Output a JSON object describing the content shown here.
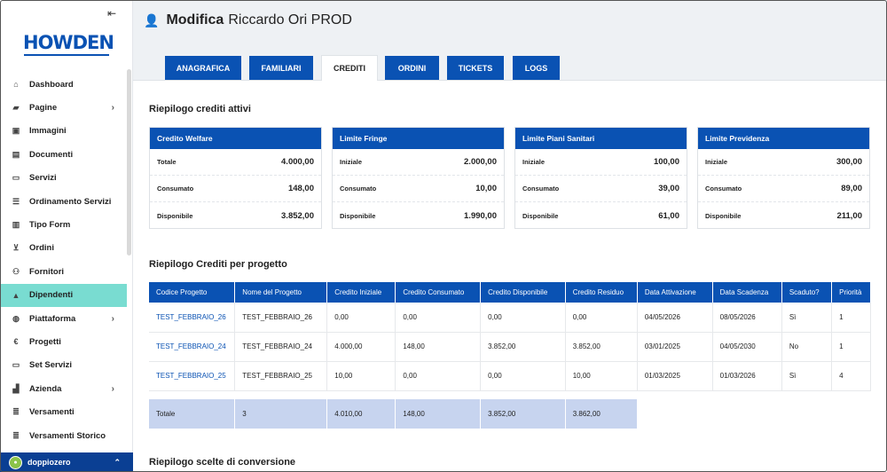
{
  "sidebar": {
    "collapse_glyph": "⇤",
    "logo": "HOWDEN",
    "items": [
      {
        "label": "Dashboard",
        "icon": "home-icon"
      },
      {
        "label": "Pagine",
        "icon": "folder-icon",
        "has_children": true
      },
      {
        "label": "Immagini",
        "icon": "image-icon"
      },
      {
        "label": "Documenti",
        "icon": "document-icon"
      },
      {
        "label": "Servizi",
        "icon": "card-icon"
      },
      {
        "label": "Ordinamento Servizi",
        "icon": "list-ordered-icon"
      },
      {
        "label": "Tipo Form",
        "icon": "form-icon"
      },
      {
        "label": "Ordini",
        "icon": "cart-icon"
      },
      {
        "label": "Fornitori",
        "icon": "users-icon"
      },
      {
        "label": "Dipendenti",
        "icon": "user-icon",
        "active": true
      },
      {
        "label": "Piattaforma",
        "icon": "globe-icon",
        "has_children": true
      },
      {
        "label": "Progetti",
        "icon": "euro-icon"
      },
      {
        "label": "Set Servizi",
        "icon": "card-icon"
      },
      {
        "label": "Azienda",
        "icon": "chart-icon",
        "has_children": true
      },
      {
        "label": "Versamenti",
        "icon": "list-icon"
      },
      {
        "label": "Versamenti Storico",
        "icon": "list-icon"
      }
    ],
    "user": {
      "name": "doppiozero"
    }
  },
  "header": {
    "action": "Modifica",
    "name": "Riccardo Ori PROD"
  },
  "tabs": [
    {
      "label": "ANAGRAFICA"
    },
    {
      "label": "FAMILIARI"
    },
    {
      "label": "CREDITI",
      "active": true
    },
    {
      "label": "ORDINI"
    },
    {
      "label": "TICKETS"
    },
    {
      "label": "LOGS"
    }
  ],
  "summary": {
    "title": "Riepilogo crediti attivi",
    "cards": [
      {
        "title": "Credito Welfare",
        "rows": [
          {
            "label": "Totale",
            "value": "4.000,00"
          },
          {
            "label": "Consumato",
            "value": "148,00"
          },
          {
            "label": "Disponibile",
            "value": "3.852,00"
          }
        ]
      },
      {
        "title": "Limite Fringe",
        "rows": [
          {
            "label": "Iniziale",
            "value": "2.000,00"
          },
          {
            "label": "Consumato",
            "value": "10,00"
          },
          {
            "label": "Disponibile",
            "value": "1.990,00"
          }
        ]
      },
      {
        "title": "Limite Piani Sanitari",
        "rows": [
          {
            "label": "Iniziale",
            "value": "100,00"
          },
          {
            "label": "Consumato",
            "value": "39,00"
          },
          {
            "label": "Disponibile",
            "value": "61,00"
          }
        ]
      },
      {
        "title": "Limite Previdenza",
        "rows": [
          {
            "label": "Iniziale",
            "value": "300,00"
          },
          {
            "label": "Consumato",
            "value": "89,00"
          },
          {
            "label": "Disponibile",
            "value": "211,00"
          }
        ]
      }
    ]
  },
  "projects": {
    "title": "Riepilogo Crediti per progetto",
    "columns": [
      "Codice Progetto",
      "Nome del Progetto",
      "Credito Iniziale",
      "Credito Consumato",
      "Credito Disponibile",
      "Credito Residuo",
      "Data Attivazione",
      "Data Scadenza",
      "Scaduto?",
      "Priorità"
    ],
    "rows": [
      [
        "TEST_FEBBRAIO_26",
        "TEST_FEBBRAIO_26",
        "0,00",
        "0,00",
        "0,00",
        "0,00",
        "04/05/2026",
        "08/05/2026",
        "Sì",
        "1"
      ],
      [
        "TEST_FEBBRAIO_24",
        "TEST_FEBBRAIO_24",
        "4.000,00",
        "148,00",
        "3.852,00",
        "3.852,00",
        "03/01/2025",
        "04/05/2030",
        "No",
        "1"
      ],
      [
        "TEST_FEBBRAIO_25",
        "TEST_FEBBRAIO_25",
        "10,00",
        "0,00",
        "0,00",
        "10,00",
        "01/03/2025",
        "01/03/2026",
        "Sì",
        "4"
      ]
    ],
    "total": [
      "Totale",
      "3",
      "4.010,00",
      "148,00",
      "3.852,00",
      "3.862,00"
    ]
  },
  "conversion": {
    "title": "Riepilogo scelte di conversione"
  },
  "colors": {
    "primary": "#0a52b3",
    "active_menu": "#79dcd1",
    "total_row": "#c7d4ef",
    "header_bg": "#eef1f4"
  }
}
